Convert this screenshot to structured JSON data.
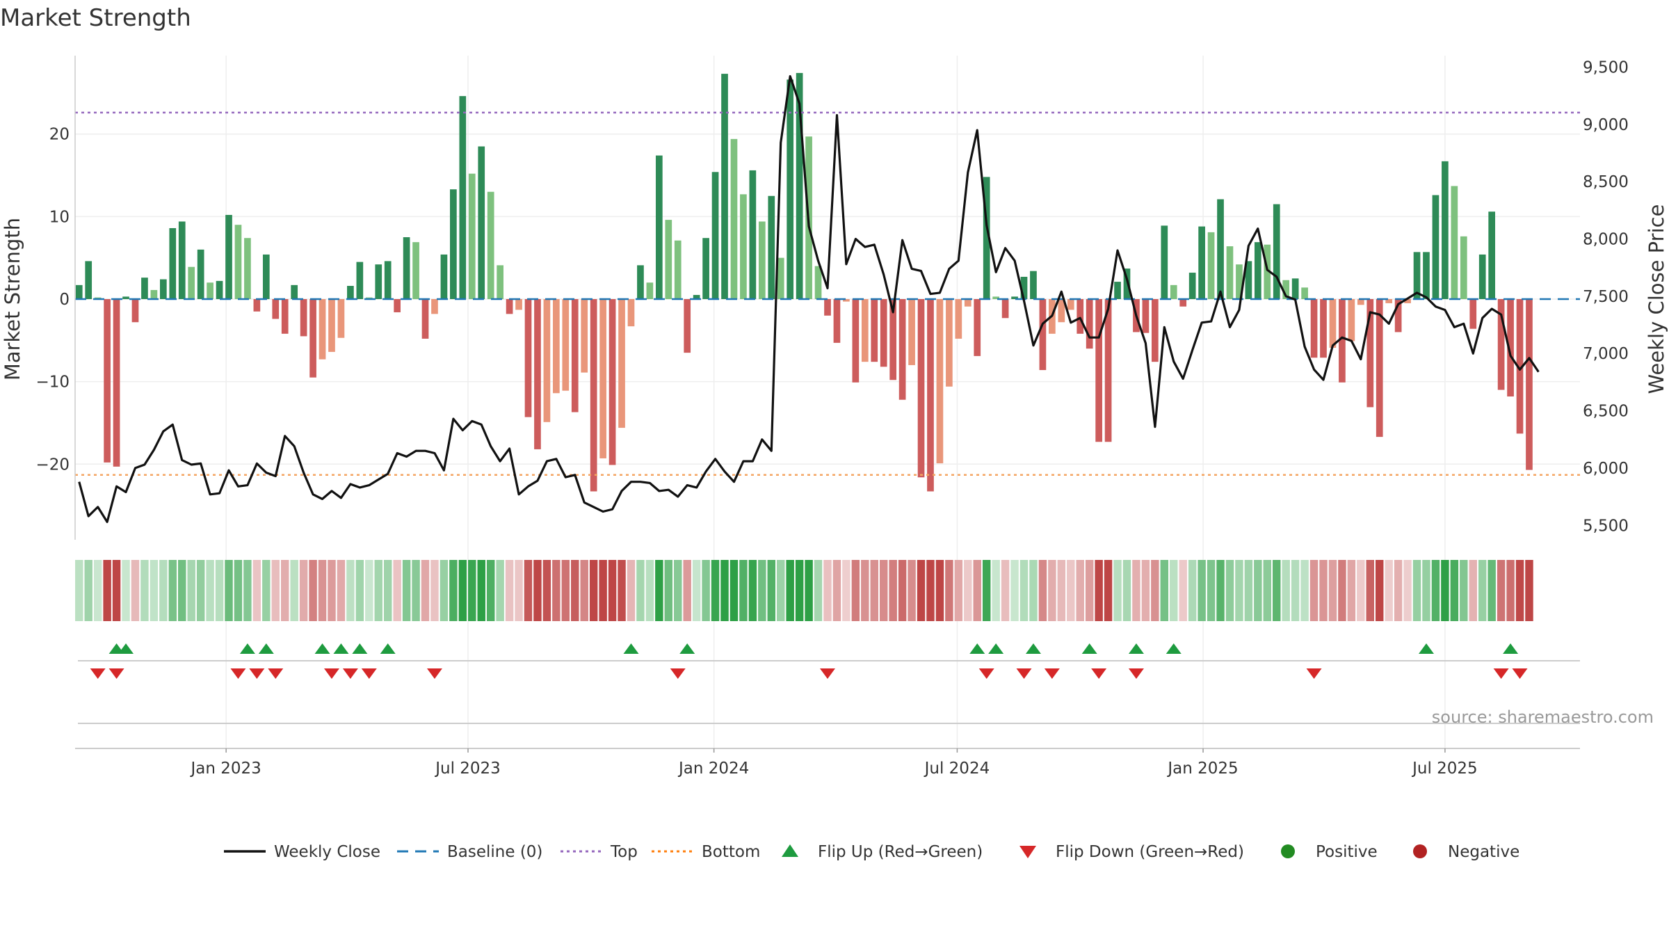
{
  "chart_data": {
    "type": "bar",
    "title": "Market Strength",
    "ylabel_left": "Market Strength",
    "ylabel_right": "Weekly Close Price",
    "source": "source: sharemaestro.com",
    "y_left": {
      "ylim": [
        -29.5,
        29.5
      ],
      "ticks": [
        -20,
        -10,
        0,
        10,
        20
      ],
      "tick_labels": [
        "−20",
        "−10",
        "0",
        "10",
        "20"
      ]
    },
    "y_right": {
      "ylim": [
        5350,
        9600
      ],
      "ticks": [
        5500,
        6000,
        6500,
        7000,
        7500,
        8000,
        8500,
        9000,
        9500
      ],
      "tick_labels": [
        "5,500",
        "6,000",
        "6,500",
        "7,000",
        "7,500",
        "8,000",
        "8,500",
        "9,000",
        "9,500"
      ]
    },
    "x_start": "2022-09-10",
    "x_end": "2025-10-10",
    "x_ticks": [
      {
        "date": "2023-01-01",
        "label": "Jan 2023"
      },
      {
        "date": "2023-07-01",
        "label": "Jul 2023"
      },
      {
        "date": "2024-01-01",
        "label": "Jan 2024"
      },
      {
        "date": "2024-07-01",
        "label": "Jul 2024"
      },
      {
        "date": "2025-01-01",
        "label": "Jan 2025"
      },
      {
        "date": "2025-07-01",
        "label": "Jul 2025"
      }
    ],
    "top_line": 22.6,
    "bottom_line": -21.3,
    "first_week": "2022-09-13",
    "weekly_close": [
      5880,
      5580,
      5660,
      5530,
      5840,
      5790,
      6000,
      6030,
      6160,
      6320,
      6380,
      6070,
      6030,
      6040,
      5770,
      5780,
      5980,
      5840,
      5850,
      6040,
      5960,
      5930,
      6280,
      6190,
      5960,
      5770,
      5730,
      5800,
      5740,
      5860,
      5830,
      5850,
      5900,
      5950,
      6130,
      6100,
      6150,
      6150,
      6130,
      5980,
      6430,
      6330,
      6410,
      6380,
      6190,
      6060,
      6170,
      5770,
      5840,
      5890,
      6060,
      6080,
      5920,
      5940,
      5700,
      5660,
      5620,
      5640,
      5800,
      5880,
      5880,
      5870,
      5800,
      5810,
      5750,
      5850,
      5830,
      5970,
      6080,
      5970,
      5880,
      6060,
      6060,
      6250,
      6150,
      8840,
      9420,
      9180,
      8110,
      7810,
      7570,
      9080,
      7780,
      8000,
      7930,
      7950,
      7690,
      7360,
      7990,
      7740,
      7720,
      7520,
      7530,
      7740,
      7810,
      8580,
      8950,
      8120,
      7710,
      7920,
      7810,
      7460,
      7070,
      7260,
      7330,
      7540,
      7270,
      7310,
      7140,
      7140,
      7390,
      7900,
      7650,
      7330,
      7090,
      6360,
      7230,
      6930,
      6780,
      7030,
      7270,
      7280,
      7540,
      7230,
      7380,
      7940,
      8090,
      7730,
      7670,
      7500,
      7470,
      7060,
      6860,
      6770,
      7070,
      7140,
      7110,
      6950,
      7360,
      7340,
      7260,
      7430,
      7480,
      7530,
      7490,
      7410,
      7380,
      7230,
      7260,
      7000,
      7310,
      7390,
      7340,
      6980,
      6860,
      6960,
      6840
    ],
    "strength": [
      1.7,
      4.6,
      0.2,
      -19.8,
      -20.3,
      0.3,
      -2.8,
      2.6,
      1.1,
      2.4,
      8.6,
      9.4,
      3.9,
      6.0,
      2.0,
      2.2,
      10.2,
      9.0,
      7.4,
      -1.5,
      5.4,
      -2.4,
      -4.2,
      1.7,
      -4.5,
      -9.5,
      -7.3,
      -6.4,
      -4.7,
      1.6,
      4.5,
      0.2,
      4.2,
      4.6,
      -1.6,
      7.5,
      6.9,
      -4.8,
      -1.8,
      5.4,
      13.3,
      24.6,
      15.2,
      18.5,
      13.0,
      4.1,
      -1.8,
      -1.3,
      -14.3,
      -18.2,
      -14.9,
      -11.4,
      -11.1,
      -13.7,
      -8.9,
      -23.3,
      -19.3,
      -20.1,
      -15.6,
      -3.3,
      4.1,
      2.0,
      17.4,
      9.6,
      7.1,
      -6.5,
      0.5,
      7.4,
      15.4,
      27.3,
      19.4,
      12.7,
      15.6,
      9.4,
      12.5,
      5.0,
      26.6,
      27.4,
      19.7,
      4.0,
      -2.0,
      -5.3,
      -0.3,
      -10.1,
      -7.6,
      -7.6,
      -8.2,
      -9.8,
      -12.2,
      -8.0,
      -21.6,
      -23.3,
      -19.9,
      -10.6,
      -4.8,
      -0.9,
      -6.9,
      14.8,
      0.3,
      -2.3,
      0.3,
      2.7,
      3.4,
      -8.6,
      -4.2,
      -2.8,
      -1.3,
      -4.2,
      -6.0,
      -17.3,
      -17.3,
      2.1,
      3.7,
      -4.0,
      -4.1,
      -7.6,
      8.9,
      1.7,
      -0.9,
      3.2,
      8.8,
      8.1,
      12.1,
      6.4,
      4.2,
      4.6,
      6.9,
      6.6,
      11.5,
      2.3,
      2.5,
      1.4,
      -7.1,
      -7.1,
      -5.9,
      -10.1,
      -5.1,
      -0.7,
      -13.1,
      -16.7,
      -0.5,
      -4.0,
      -0.5,
      5.7,
      5.7,
      12.6,
      16.7,
      13.7,
      7.6,
      -3.6,
      5.4,
      10.6,
      -11.0,
      -11.8,
      -16.3,
      -20.7
    ],
    "flip_up": [
      "2022-10-11",
      "2022-10-18",
      "2023-01-17",
      "2023-01-31",
      "2023-03-14",
      "2023-03-28",
      "2023-04-11",
      "2023-05-02",
      "2023-10-31",
      "2023-12-12",
      "2024-07-16",
      "2024-07-30",
      "2024-08-27",
      "2024-10-08",
      "2024-11-12",
      "2024-12-10",
      "2025-06-17",
      "2025-08-19"
    ],
    "flip_down": [
      "2022-09-27",
      "2022-10-11",
      "2023-01-10",
      "2023-01-24",
      "2023-02-07",
      "2023-03-21",
      "2023-04-04",
      "2023-04-18",
      "2023-06-06",
      "2023-12-05",
      "2024-03-26",
      "2024-07-23",
      "2024-08-20",
      "2024-09-10",
      "2024-10-15",
      "2024-11-12",
      "2025-03-25",
      "2025-08-12",
      "2025-08-26"
    ],
    "legend": [
      {
        "label": "Weekly Close",
        "symbol": "line",
        "color": "#111111"
      },
      {
        "label": "Baseline (0)",
        "symbol": "dash",
        "color": "#1f77b4"
      },
      {
        "label": "Top",
        "symbol": "dot",
        "color": "#9467bd"
      },
      {
        "label": "Bottom",
        "symbol": "dot",
        "color": "#ff7f0e"
      },
      {
        "label": "Flip Up (Red→Green)",
        "symbol": "triangle-up",
        "color": "#1e9b3f"
      },
      {
        "label": "Flip Down (Green→Red)",
        "symbol": "triangle-down",
        "color": "#d62728"
      },
      {
        "label": "Positive",
        "symbol": "circle",
        "color": "#228b22"
      },
      {
        "label": "Negative",
        "symbol": "circle",
        "color": "#b22222"
      }
    ],
    "colors": {
      "pos_strong": "#2e8b57",
      "pos_weak": "#7ec17e",
      "neg_strong": "#cd5c5c",
      "neg_weak": "#e9967a",
      "price": "#111111",
      "top": "#9467bd",
      "bottom": "#f4a460",
      "baseline": "#1f77b4",
      "flip_up": "#1e9b3f",
      "flip_down": "#d62728"
    }
  }
}
